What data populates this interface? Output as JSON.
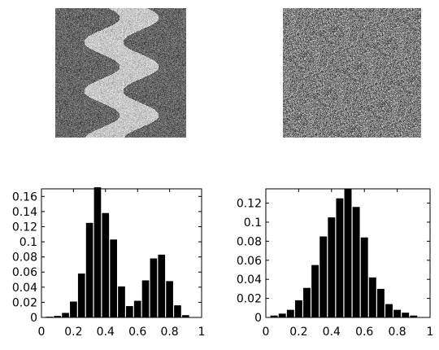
{
  "images": [
    {
      "name": "textured-stripe-image",
      "pattern": "sinusoidal-bright-stripe-on-noise"
    },
    {
      "name": "uniform-noise-image",
      "pattern": "uniform-noise"
    }
  ],
  "chart_data": [
    {
      "type": "bar",
      "title": "",
      "xlabel": "",
      "ylabel": "",
      "xlim": [
        0,
        1
      ],
      "ylim": [
        0,
        0.17
      ],
      "grid": false,
      "x_ticks": [
        "0",
        "0.2",
        "0.4",
        "0.6",
        "0.8",
        "1"
      ],
      "y_ticks": [
        "0",
        "0.02",
        "0.04",
        "0.06",
        "0.08",
        "0.1",
        "0.12",
        "0.14",
        "0.16"
      ],
      "bin_width": 0.05,
      "x": [
        0.05,
        0.1,
        0.15,
        0.2,
        0.25,
        0.3,
        0.35,
        0.4,
        0.45,
        0.5,
        0.55,
        0.6,
        0.65,
        0.7,
        0.75,
        0.8,
        0.85,
        0.9
      ],
      "values": [
        0.001,
        0.002,
        0.006,
        0.021,
        0.058,
        0.125,
        0.172,
        0.138,
        0.103,
        0.041,
        0.015,
        0.022,
        0.049,
        0.078,
        0.083,
        0.048,
        0.016,
        0.003
      ],
      "color": "#000000"
    },
    {
      "type": "bar",
      "title": "",
      "xlabel": "",
      "ylabel": "",
      "xlim": [
        0,
        1
      ],
      "ylim": [
        0,
        0.135
      ],
      "grid": false,
      "x_ticks": [
        "0",
        "0.2",
        "0.4",
        "0.6",
        "0.8",
        "1"
      ],
      "y_ticks": [
        "0",
        "0.02",
        "0.04",
        "0.06",
        "0.08",
        "0.1",
        "0.12"
      ],
      "bin_width": 0.05,
      "x": [
        0.05,
        0.1,
        0.15,
        0.2,
        0.25,
        0.3,
        0.35,
        0.4,
        0.45,
        0.5,
        0.55,
        0.6,
        0.65,
        0.7,
        0.75,
        0.8,
        0.85,
        0.9
      ],
      "values": [
        0.002,
        0.004,
        0.008,
        0.018,
        0.031,
        0.055,
        0.085,
        0.105,
        0.125,
        0.135,
        0.116,
        0.084,
        0.042,
        0.03,
        0.014,
        0.008,
        0.005,
        0.002
      ],
      "color": "#000000"
    }
  ]
}
